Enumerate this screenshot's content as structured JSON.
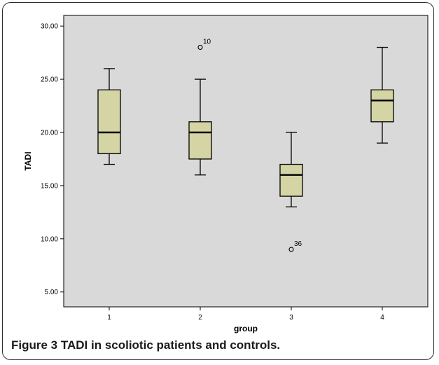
{
  "caption": {
    "label": "Figure 3",
    "text": "TADI in scoliotic patients and controls."
  },
  "colors": {
    "plot_background": "#d9d9d9",
    "box_fill": "#d4d4a4",
    "box_stroke": "#000000",
    "axis": "#000000"
  },
  "chart_data": {
    "type": "boxplot",
    "xlabel": "group",
    "ylabel": "TADI",
    "ylim": [
      3.6,
      31.0
    ],
    "yticks": [
      5,
      10,
      15,
      20,
      25,
      30
    ],
    "ytick_labels": [
      "5.00",
      "10.00",
      "15.00",
      "20.00",
      "25.00",
      "30.00"
    ],
    "grid": false,
    "categories": [
      "1",
      "2",
      "3",
      "4"
    ],
    "boxes": [
      {
        "category": "1",
        "whisker_low": 17,
        "q1": 18,
        "median": 20,
        "q3": 24,
        "whisker_high": 26,
        "outliers": []
      },
      {
        "category": "2",
        "whisker_low": 16,
        "q1": 17.5,
        "median": 20,
        "q3": 21,
        "whisker_high": 25,
        "outliers": [
          {
            "value": 28,
            "label": "10"
          }
        ]
      },
      {
        "category": "3",
        "whisker_low": 13,
        "q1": 14,
        "median": 16,
        "q3": 17,
        "whisker_high": 20,
        "outliers": [
          {
            "value": 9,
            "label": "36"
          }
        ]
      },
      {
        "category": "4",
        "whisker_low": 19,
        "q1": 21,
        "median": 23,
        "q3": 24,
        "whisker_high": 28,
        "outliers": []
      }
    ]
  }
}
